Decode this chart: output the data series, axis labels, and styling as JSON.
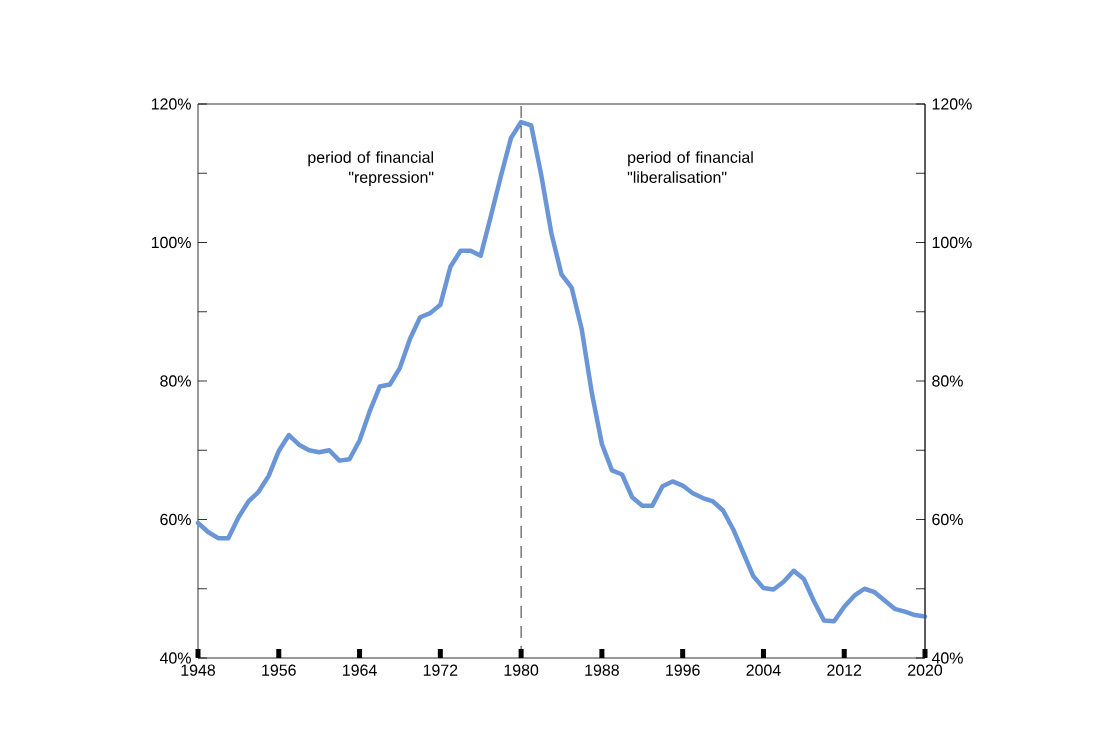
{
  "chart_data": {
    "type": "line",
    "x": [
      1948,
      1949,
      1950,
      1951,
      1952,
      1953,
      1954,
      1955,
      1956,
      1957,
      1958,
      1959,
      1960,
      1961,
      1962,
      1963,
      1964,
      1965,
      1966,
      1967,
      1968,
      1969,
      1970,
      1971,
      1972,
      1973,
      1974,
      1975,
      1976,
      1977,
      1978,
      1979,
      1980,
      1981,
      1982,
      1983,
      1984,
      1985,
      1986,
      1987,
      1988,
      1989,
      1990,
      1991,
      1992,
      1993,
      1994,
      1995,
      1996,
      1997,
      1998,
      1999,
      2000,
      2001,
      2002,
      2003,
      2004,
      2005,
      2006,
      2007,
      2008,
      2009,
      2010,
      2011,
      2012,
      2013,
      2014,
      2015,
      2016,
      2017,
      2018,
      2019,
      2020
    ],
    "series": [
      {
        "color": "#6a96d8",
        "values": [
          59.5,
          58.2,
          57.3,
          57.3,
          60.3,
          62.6,
          64.0,
          66.3,
          69.9,
          72.2,
          70.8,
          70.0,
          69.7,
          70.0,
          68.5,
          68.7,
          71.4,
          75.6,
          79.2,
          79.5,
          81.9,
          86.1,
          89.2,
          89.8,
          91.0,
          96.5,
          98.8,
          98.8,
          98.1,
          103.8,
          109.6,
          115.1,
          117.4,
          116.9,
          109.7,
          101.3,
          95.4,
          93.5,
          87.5,
          78.3,
          70.9,
          67.1,
          66.5,
          63.2,
          62.0,
          62.0,
          64.8,
          65.5,
          64.9,
          63.8,
          63.1,
          62.6,
          61.3,
          58.6,
          55.2,
          51.8,
          50.1,
          49.9,
          51.0,
          52.6,
          51.4,
          48.2,
          45.4,
          45.3,
          47.4,
          49.0,
          50.0,
          49.5,
          48.3,
          47.1,
          46.7,
          46.2,
          46.0
        ]
      }
    ],
    "xlim": [
      1948,
      2020
    ],
    "xticks": [
      1948,
      1956,
      1964,
      1972,
      1980,
      1988,
      1996,
      2004,
      2012,
      2020
    ],
    "ylim": [
      40,
      120
    ],
    "yticks": [
      {
        "value": 40,
        "label": "40%"
      },
      {
        "value": 50,
        "label": null
      },
      {
        "value": 60,
        "label": "60%"
      },
      {
        "value": 70,
        "label": null
      },
      {
        "value": 80,
        "label": "80%"
      },
      {
        "value": 90,
        "label": null
      },
      {
        "value": 100,
        "label": "100%"
      },
      {
        "value": 110,
        "label": null
      },
      {
        "value": 120,
        "label": "120%"
      }
    ],
    "y2lim": [
      40,
      120
    ],
    "y2ticks": [
      {
        "value": 40,
        "label": "40%"
      },
      {
        "value": 50,
        "label": null
      },
      {
        "value": 60,
        "label": "60%"
      },
      {
        "value": 70,
        "label": null
      },
      {
        "value": 80,
        "label": "80%"
      },
      {
        "value": 90,
        "label": null
      },
      {
        "value": 100,
        "label": "100%"
      },
      {
        "value": 110,
        "label": null
      },
      {
        "value": 120,
        "label": "120%"
      }
    ],
    "ref_lines": [
      {
        "axis": "x",
        "value": 1980,
        "line_style": "dashed",
        "color": "#000000"
      }
    ],
    "annotations": [
      "period of financial \"repression\"",
      "period of financial \"liberalisation\""
    ],
    "grid": false,
    "marker": "none",
    "line_style": "solid"
  }
}
